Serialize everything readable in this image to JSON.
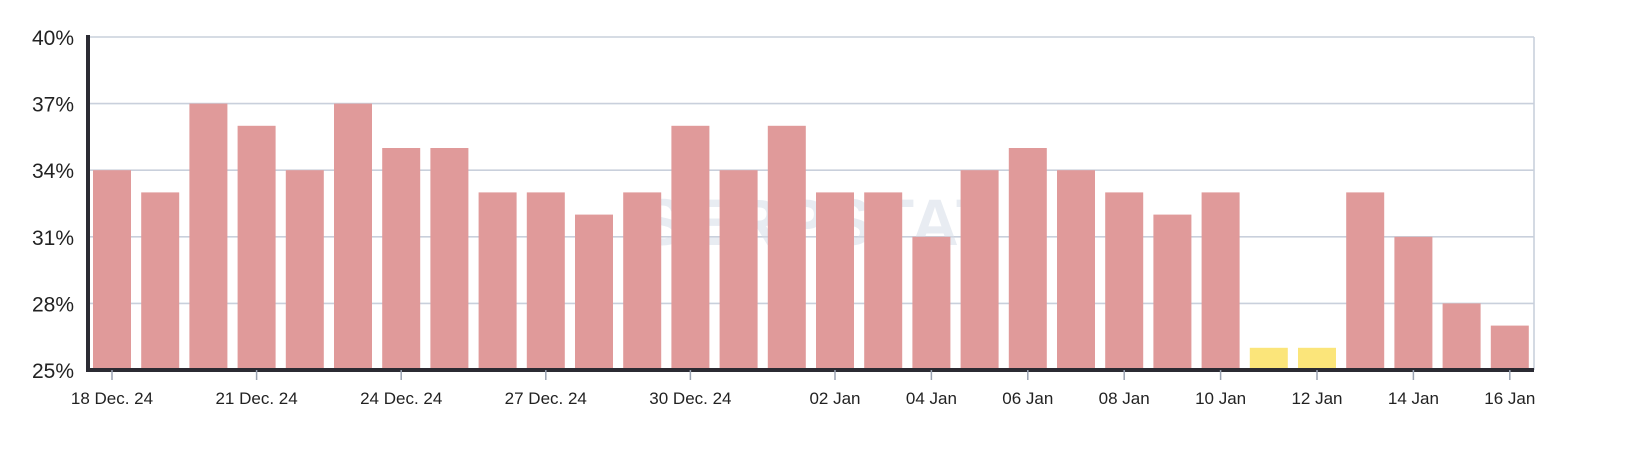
{
  "watermark": "SERPSTAT",
  "chart_data": {
    "type": "bar",
    "title": "",
    "xlabel": "",
    "ylabel": "",
    "ylim": [
      25,
      40
    ],
    "yticks": [
      "25%",
      "28%",
      "31%",
      "34%",
      "37%",
      "40%"
    ],
    "ytick_values": [
      25,
      28,
      31,
      34,
      37,
      40
    ],
    "grid": true,
    "legend": "none",
    "colors": {
      "default": "#e09a9a",
      "highlight": "#fbe57a",
      "axis": "#2b2b33",
      "grid": "#c9d0dc"
    },
    "categories": [
      "2024-12-18",
      "2024-12-19",
      "2024-12-20",
      "2024-12-21",
      "2024-12-22",
      "2024-12-23",
      "2024-12-24",
      "2024-12-25",
      "2024-12-26",
      "2024-12-27",
      "2024-12-28",
      "2024-12-29",
      "2024-12-30",
      "2024-12-31",
      "2025-01-01",
      "2025-01-02",
      "2025-01-03",
      "2025-01-04",
      "2025-01-05",
      "2025-01-06",
      "2025-01-07",
      "2025-01-08",
      "2025-01-09",
      "2025-01-10",
      "2025-01-11",
      "2025-01-12",
      "2025-01-13",
      "2025-01-14",
      "2025-01-15",
      "2025-01-16"
    ],
    "values": [
      34,
      33,
      37,
      36,
      34,
      37,
      35,
      35,
      33,
      33,
      32,
      33,
      36,
      34,
      36,
      33,
      33,
      31,
      34,
      35,
      34,
      33,
      32,
      33,
      26,
      26,
      33,
      31,
      28,
      27
    ],
    "highlighted": [
      "2025-01-11",
      "2025-01-12"
    ],
    "xtick_labels": [
      {
        "date": "2024-12-18",
        "label": "18 Dec. 24"
      },
      {
        "date": "2024-12-21",
        "label": "21 Dec. 24"
      },
      {
        "date": "2024-12-24",
        "label": "24 Dec. 24"
      },
      {
        "date": "2024-12-27",
        "label": "27 Dec. 24"
      },
      {
        "date": "2024-12-30",
        "label": "30 Dec. 24"
      },
      {
        "date": "2025-01-02",
        "label": "02 Jan"
      },
      {
        "date": "2025-01-04",
        "label": "04 Jan"
      },
      {
        "date": "2025-01-06",
        "label": "06 Jan"
      },
      {
        "date": "2025-01-08",
        "label": "08 Jan"
      },
      {
        "date": "2025-01-10",
        "label": "10 Jan"
      },
      {
        "date": "2025-01-12",
        "label": "12 Jan"
      },
      {
        "date": "2025-01-14",
        "label": "14 Jan"
      },
      {
        "date": "2025-01-16",
        "label": "16 Jan"
      }
    ]
  }
}
